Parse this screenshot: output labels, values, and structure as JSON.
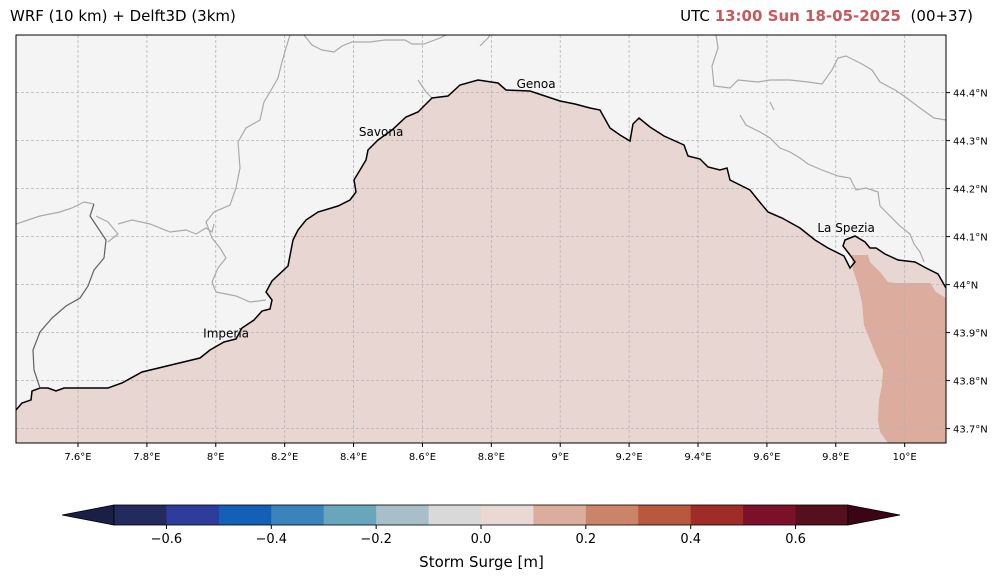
{
  "header": {
    "model_title": "WRF (10 km) + Delft3D (3km)",
    "utc_label": "UTC",
    "datetime": "13:00 Sun 18-05-2025",
    "lead_time": "(00+37)"
  },
  "map": {
    "extent": {
      "lon": [
        7.42,
        10.12
      ],
      "lat": [
        43.67,
        44.52
      ]
    },
    "land_color": "#f4f4f4",
    "sea_color": "#e8d6d3",
    "surge_patch_color": "#dcad9e",
    "coast_color": "#000000",
    "border_color": "#aaaaaa",
    "longitude_ticks": [
      "7.6°E",
      "7.8°E",
      "8°E",
      "8.2°E",
      "8.4°E",
      "8.6°E",
      "8.8°E",
      "9°E",
      "9.2°E",
      "9.4°E",
      "9.6°E",
      "9.8°E",
      "10°E"
    ],
    "latitude_ticks": [
      "44.4°N",
      "44.3°N",
      "44.2°N",
      "44.1°N",
      "44°N",
      "43.9°N",
      "43.8°N",
      "43.7°N"
    ],
    "cities": [
      {
        "name": "Genoa",
        "lon": 8.93,
        "lat": 44.41
      },
      {
        "name": "Savona",
        "lon": 8.48,
        "lat": 44.31
      },
      {
        "name": "Imperia",
        "lon": 8.03,
        "lat": 43.89
      },
      {
        "name": "La Spezia",
        "lon": 9.83,
        "lat": 44.11
      }
    ]
  },
  "colorbar": {
    "label": "Storm Surge [m]",
    "range": [
      -0.7,
      0.7
    ],
    "colors": [
      "#1a1f45",
      "#232a5e",
      "#2e3c9c",
      "#1460b9",
      "#3b84bb",
      "#68a6bc",
      "#a6bfc9",
      "#d9d9d9",
      "#ead8d2",
      "#daad9d",
      "#cb8469",
      "#b8583c",
      "#a02c28",
      "#7d1029",
      "#550f1f",
      "#3c0515"
    ],
    "tick_labels": [
      "−0.6",
      "−0.4",
      "−0.2",
      "0.0",
      "0.2",
      "0.4",
      "0.6"
    ],
    "tick_values": [
      -0.6,
      -0.4,
      -0.2,
      0.0,
      0.2,
      0.4,
      0.6
    ]
  }
}
